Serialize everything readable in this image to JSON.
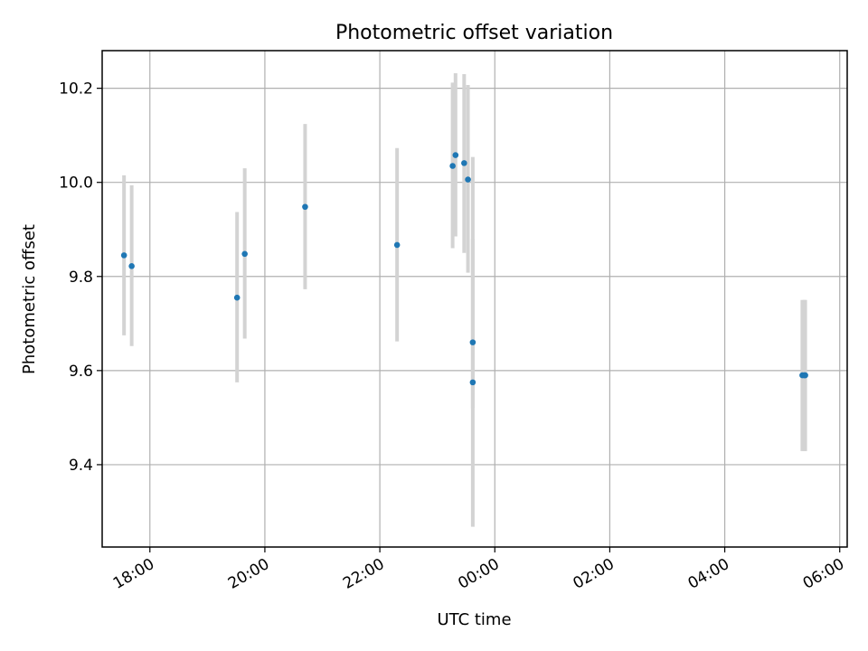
{
  "chart_data": {
    "type": "scatter",
    "title": "Photometric offset variation",
    "xlabel": "UTC time",
    "ylabel": "Photometric offset",
    "grid": true,
    "x_unit": "UTC hours since 00:00",
    "xlim": [
      -6.83,
      6.13
    ],
    "ylim": [
      9.225,
      10.28
    ],
    "x_tick_values": [
      -6,
      -4,
      -2,
      0,
      2,
      4,
      6
    ],
    "x_tick_labels": [
      "18:00",
      "20:00",
      "22:00",
      "00:00",
      "02:00",
      "04:00",
      "06:00"
    ],
    "y_tick_values": [
      9.4,
      9.6,
      9.8,
      10.0,
      10.2
    ],
    "y_tick_labels": [
      "9.4",
      "9.6",
      "9.8",
      "10.0",
      "10.2"
    ],
    "colors": {
      "points": "#1f77b4",
      "error_bars": "#d3d3d3",
      "grid": "#b0b0b0"
    },
    "series": [
      {
        "points": [
          {
            "time": "17:33",
            "y": 9.845,
            "ylow": 9.675,
            "yhigh": 10.015
          },
          {
            "time": "17:41",
            "y": 9.822,
            "ylow": 9.652,
            "yhigh": 9.994
          },
          {
            "time": "19:31",
            "y": 9.755,
            "ylow": 9.575,
            "yhigh": 9.937
          },
          {
            "time": "19:39",
            "y": 9.848,
            "ylow": 9.668,
            "yhigh": 10.03
          },
          {
            "time": "20:42",
            "y": 9.948,
            "ylow": 9.773,
            "yhigh": 10.124
          },
          {
            "time": "22:18",
            "y": 9.867,
            "ylow": 9.662,
            "yhigh": 10.073
          },
          {
            "time": "23:16",
            "y": 10.035,
            "ylow": 9.86,
            "yhigh": 10.212
          },
          {
            "time": "23:19",
            "y": 10.058,
            "ylow": 9.885,
            "yhigh": 10.232
          },
          {
            "time": "23:28",
            "y": 10.041,
            "ylow": 9.85,
            "yhigh": 10.23
          },
          {
            "time": "23:32",
            "y": 10.006,
            "ylow": 9.808,
            "yhigh": 10.207
          },
          {
            "time": "23:37",
            "y": 9.66,
            "ylow": 9.52,
            "yhigh": 10.054
          },
          {
            "time": "23:37",
            "y": 9.575,
            "ylow": 9.268,
            "yhigh": 9.88
          },
          {
            "time": "05:21",
            "y": 9.59,
            "ylow": 9.429,
            "yhigh": 9.75
          },
          {
            "time": "05:23",
            "y": 9.59,
            "ylow": 9.429,
            "yhigh": 9.75
          },
          {
            "time": "05:24",
            "y": 9.59,
            "ylow": 9.429,
            "yhigh": 9.75
          }
        ]
      }
    ]
  }
}
